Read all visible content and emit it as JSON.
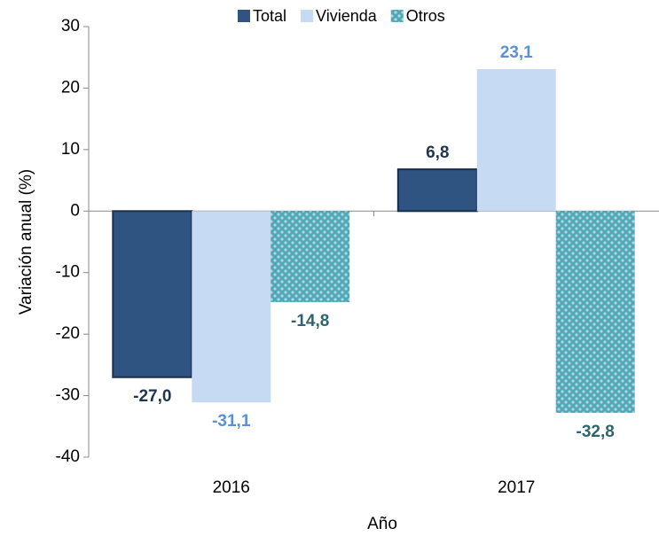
{
  "chart_data": {
    "type": "bar",
    "y_label": "Variación anual (%)",
    "x_label": "Año",
    "categories": [
      "2016",
      "2017"
    ],
    "series": [
      {
        "name": "Total",
        "color": "#2f5482",
        "label_color": "#1f3550",
        "values": [
          -27.0,
          6.8
        ],
        "value_labels": [
          "-27,0",
          "6,8"
        ]
      },
      {
        "name": "Vivienda",
        "color": "#c6daf3",
        "label_color": "#5b8fd6",
        "values": [
          -31.1,
          23.1
        ],
        "value_labels": [
          "-31,1",
          "23,1"
        ]
      },
      {
        "name": "Otros",
        "color": "#4fa7b8",
        "label_color": "#2e6470",
        "values": [
          -14.8,
          -32.8
        ],
        "value_labels": [
          "-14,8",
          "-32,8"
        ]
      }
    ],
    "ylim": [
      -40,
      30
    ],
    "yticks": [
      -40,
      -30,
      -20,
      -10,
      0,
      10,
      20,
      30
    ],
    "legend": "top"
  }
}
